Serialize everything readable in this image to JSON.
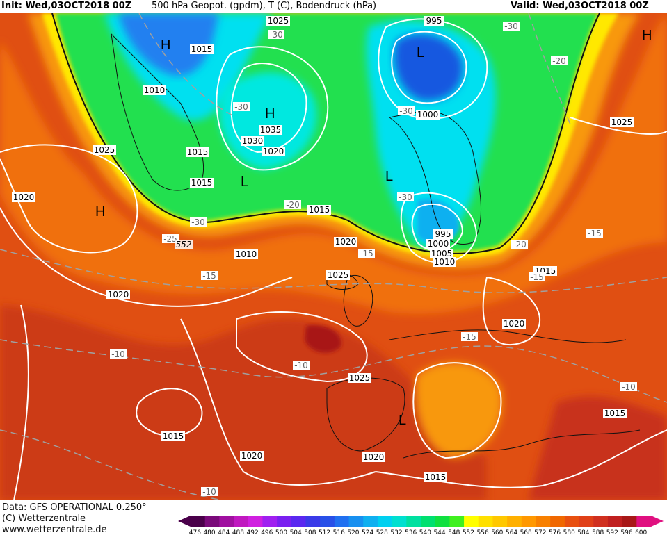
{
  "header": {
    "init": "Init: Wed,03OCT2018 00Z",
    "title": "500 hPa Geopot. (gpdm), T (C), Bodendruck (hPa)",
    "valid": "Valid: Wed,03OCT2018 00Z"
  },
  "footer": {
    "data_source": "Data: GFS OPERATIONAL 0.250°",
    "copyright": "(C) Wetterzentrale",
    "website": "www.wetterzentrale.de"
  },
  "colorbar": {
    "ticks": [
      "476",
      "480",
      "484",
      "488",
      "492",
      "496",
      "500",
      "504",
      "508",
      "512",
      "516",
      "520",
      "524",
      "528",
      "532",
      "536",
      "540",
      "544",
      "548",
      "552",
      "556",
      "560",
      "564",
      "568",
      "572",
      "576",
      "580",
      "584",
      "588",
      "592",
      "596",
      "600"
    ],
    "colors": [
      "#4a004a",
      "#7a0a7a",
      "#a010a0",
      "#c018c0",
      "#d020e0",
      "#a020f0",
      "#7a20f0",
      "#5a28f0",
      "#3a3ae8",
      "#2850e8",
      "#2070f0",
      "#1890f0",
      "#10b0f0",
      "#00d0f0",
      "#00e0d0",
      "#00e0a0",
      "#00e070",
      "#10e040",
      "#40f020",
      "#ffff00",
      "#ffe000",
      "#ffc800",
      "#ffb000",
      "#ff9800",
      "#f88000",
      "#f06800",
      "#e85010",
      "#e04018",
      "#d03020",
      "#c02020",
      "#a81818",
      "#e01080"
    ]
  },
  "map_colors": {
    "background": "#e04f12",
    "deep_red": "#c8321a",
    "orange": "#f07010",
    "light_orange": "#f89808",
    "yellow": "#ffe800",
    "green": "#20e050",
    "cyan": "#00e0f0",
    "blue": "#2080f0",
    "deep_blue": "#1858e0"
  },
  "pressure_labels": [
    "1025",
    "1015",
    "1010",
    "1035",
    "1030",
    "1020",
    "1015",
    "1020",
    "1015",
    "1010",
    "1020",
    "1025",
    "1020",
    "1015",
    "1020",
    "1025",
    "1015",
    "1020",
    "1015",
    "1025",
    "1015",
    "995",
    "1000",
    "995",
    "1000",
    "1005",
    "1010",
    "1015",
    "1020"
  ],
  "temperature_labels": [
    "-30",
    "-30",
    "-30",
    "-30",
    "-20",
    "-30",
    "-25",
    "-15",
    "-15",
    "-10",
    "-10",
    "-10",
    "-10",
    "-15",
    "-15",
    "-20",
    "-20",
    "-15",
    "-15",
    "-10",
    "-30"
  ],
  "height_label": "552",
  "pressure_centers": [
    "H",
    "H",
    "H",
    "H",
    "L",
    "L",
    "L",
    "L"
  ]
}
